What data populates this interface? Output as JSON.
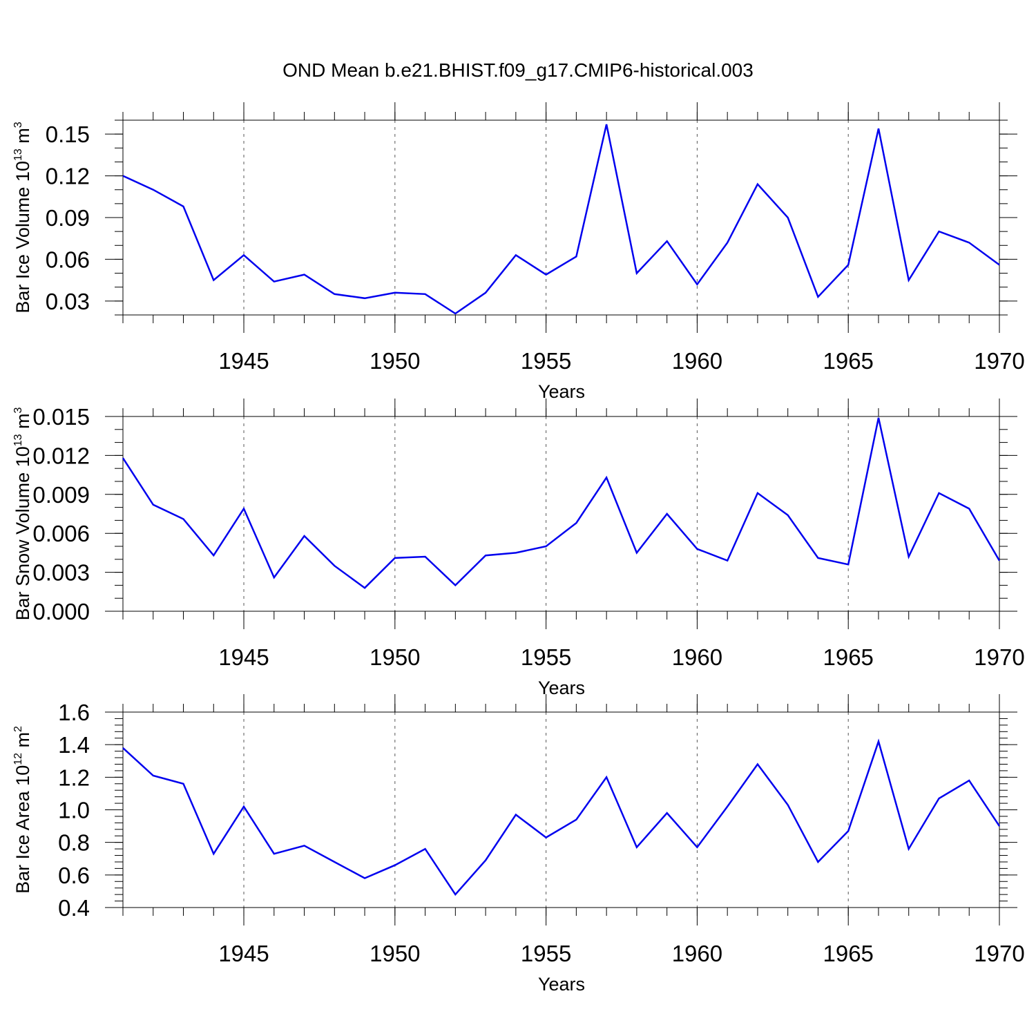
{
  "title": "OND Mean b.e21.BHIST.f09_g17.CMIP6-historical.003",
  "chart_data": [
    {
      "type": "line",
      "name": "ice-volume",
      "ylabel": {
        "text": "Bar Ice Volume 10",
        "sup": "13",
        "unit": " m",
        "unit_sup": "3"
      },
      "xlabel": "Years",
      "xlim": [
        1941,
        1970
      ],
      "ylim": [
        0.02,
        0.16
      ],
      "x_major_ticks": [
        1945,
        1950,
        1955,
        1960,
        1965,
        1970
      ],
      "x_tick_labels": [
        "1945",
        "1950",
        "1955",
        "1960",
        "1965",
        "1970"
      ],
      "y_major_ticks": [
        0.03,
        0.06,
        0.09,
        0.12,
        0.15
      ],
      "y_tick_labels": [
        "0.03",
        "0.06",
        "0.09",
        "0.12",
        "0.15"
      ],
      "y_minor_step": 0.01,
      "line_color": "#0000ee",
      "x": [
        1941,
        1942,
        1943,
        1944,
        1945,
        1946,
        1947,
        1948,
        1949,
        1950,
        1951,
        1952,
        1953,
        1954,
        1955,
        1956,
        1957,
        1958,
        1959,
        1960,
        1961,
        1962,
        1963,
        1964,
        1965,
        1966,
        1967,
        1968,
        1969,
        1970
      ],
      "values": [
        0.12,
        0.11,
        0.098,
        0.045,
        0.063,
        0.044,
        0.049,
        0.035,
        0.032,
        0.036,
        0.035,
        0.021,
        0.036,
        0.063,
        0.049,
        0.062,
        0.157,
        0.05,
        0.073,
        0.042,
        0.072,
        0.114,
        0.09,
        0.033,
        0.056,
        0.154,
        0.045,
        0.08,
        0.072,
        0.056
      ]
    },
    {
      "type": "line",
      "name": "snow-volume",
      "ylabel": {
        "text": "Bar Snow Volume 10",
        "sup": "13",
        "unit": " m",
        "unit_sup": "3"
      },
      "xlabel": "Years",
      "xlim": [
        1941,
        1970
      ],
      "ylim": [
        0.0,
        0.015
      ],
      "x_major_ticks": [
        1945,
        1950,
        1955,
        1960,
        1965,
        1970
      ],
      "x_tick_labels": [
        "1945",
        "1950",
        "1955",
        "1960",
        "1965",
        "1970"
      ],
      "y_major_ticks": [
        0.0,
        0.003,
        0.006,
        0.009,
        0.012,
        0.015
      ],
      "y_tick_labels": [
        "0.000",
        "0.003",
        "0.006",
        "0.009",
        "0.012",
        "0.015"
      ],
      "y_minor_step": 0.001,
      "line_color": "#0000ee",
      "x": [
        1941,
        1942,
        1943,
        1944,
        1945,
        1946,
        1947,
        1948,
        1949,
        1950,
        1951,
        1952,
        1953,
        1954,
        1955,
        1956,
        1957,
        1958,
        1959,
        1960,
        1961,
        1962,
        1963,
        1964,
        1965,
        1966,
        1967,
        1968,
        1969,
        1970
      ],
      "values": [
        0.0118,
        0.0082,
        0.0071,
        0.0043,
        0.0079,
        0.0026,
        0.0058,
        0.0035,
        0.0018,
        0.0041,
        0.0042,
        0.002,
        0.0043,
        0.0045,
        0.005,
        0.0068,
        0.0103,
        0.0045,
        0.0075,
        0.0048,
        0.0039,
        0.0091,
        0.0074,
        0.0041,
        0.0036,
        0.0149,
        0.0042,
        0.0091,
        0.0079,
        0.0039
      ]
    },
    {
      "type": "line",
      "name": "ice-area",
      "ylabel": {
        "text": "Bar Ice Area 10",
        "sup": "12",
        "unit": " m",
        "unit_sup": "2"
      },
      "xlabel": "Years",
      "xlim": [
        1941,
        1970
      ],
      "ylim": [
        0.4,
        1.6
      ],
      "x_major_ticks": [
        1945,
        1950,
        1955,
        1960,
        1965,
        1970
      ],
      "x_tick_labels": [
        "1945",
        "1950",
        "1955",
        "1960",
        "1965",
        "1970"
      ],
      "y_major_ticks": [
        0.4,
        0.6,
        0.8,
        1.0,
        1.2,
        1.4,
        1.6
      ],
      "y_tick_labels": [
        "0.4",
        "0.6",
        "0.8",
        "1.0",
        "1.2",
        "1.4",
        "1.6"
      ],
      "y_minor_step": 0.04,
      "line_color": "#0000ee",
      "x": [
        1941,
        1942,
        1943,
        1944,
        1945,
        1946,
        1947,
        1948,
        1949,
        1950,
        1951,
        1952,
        1953,
        1954,
        1955,
        1956,
        1957,
        1958,
        1959,
        1960,
        1961,
        1962,
        1963,
        1964,
        1965,
        1966,
        1967,
        1968,
        1969,
        1970
      ],
      "values": [
        1.38,
        1.21,
        1.16,
        0.73,
        1.02,
        0.73,
        0.78,
        0.68,
        0.58,
        0.66,
        0.76,
        0.48,
        0.69,
        0.97,
        0.83,
        0.94,
        1.2,
        0.77,
        0.98,
        0.77,
        1.02,
        1.28,
        1.03,
        0.68,
        0.87,
        1.42,
        0.76,
        1.07,
        1.18,
        0.9
      ]
    }
  ]
}
